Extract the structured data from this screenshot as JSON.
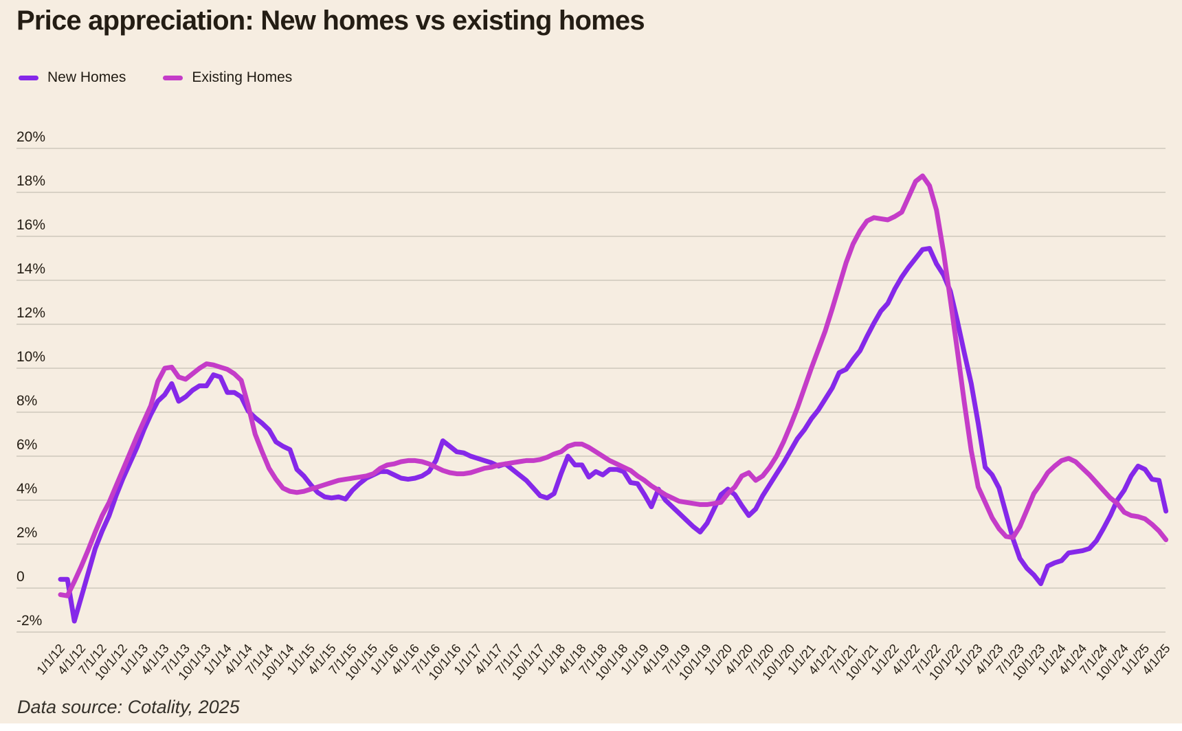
{
  "page": {
    "footer": "Data source: Cotality, 2025"
  },
  "legend": [
    {
      "label": "New Homes",
      "color": "#8528e9"
    },
    {
      "label": "Existing Homes",
      "color": "#c43cc8"
    }
  ],
  "colors": {
    "background": "#f6ede1",
    "gridline": "#d8d1c5",
    "text": "#241d14",
    "new_homes": "#8528e9",
    "existing_homes": "#c43cc8"
  },
  "chart_data": {
    "type": "line",
    "title": "Price appreciation: New homes vs existing homes",
    "xlabel": "",
    "ylabel": "",
    "ylim": [
      -2,
      20
    ],
    "grid": "horizontal",
    "legend_position": "top-left",
    "x_start_date": "1/1/12",
    "x_end_date": "4/1/25",
    "months_per_tick": 3,
    "x_tick_labels": [
      "1/1/12",
      "4/1/12",
      "7/1/12",
      "10/1/12",
      "1/1/13",
      "4/1/13",
      "7/1/13",
      "10/1/13",
      "1/1/14",
      "4/1/14",
      "7/1/14",
      "10/1/14",
      "1/1/15",
      "4/1/15",
      "7/1/15",
      "10/1/15",
      "1/1/16",
      "4/1/16",
      "7/1/16",
      "10/1/16",
      "1/1/17",
      "4/1/17",
      "7/1/17",
      "10/1/17",
      "1/1/18",
      "4/1/18",
      "7/1/18",
      "10/1/18",
      "1/1/19",
      "4/1/19",
      "7/1/19",
      "10/1/19",
      "1/1/20",
      "4/1/20",
      "7/1/20",
      "10/1/20",
      "1/1/21",
      "4/1/21",
      "7/1/21",
      "10/1/21",
      "1/1/22",
      "4/1/22",
      "7/1/22",
      "10/1/22",
      "1/1/23",
      "4/1/23",
      "7/1/23",
      "10/1/23",
      "1/1/24",
      "4/1/24",
      "7/1/24",
      "10/1/24",
      "1/1/25",
      "4/1/25"
    ],
    "y_ticks": [
      {
        "label": "20%",
        "value": 20
      },
      {
        "label": "18%",
        "value": 18
      },
      {
        "label": "16%",
        "value": 16
      },
      {
        "label": "14%",
        "value": 14
      },
      {
        "label": "12%",
        "value": 12
      },
      {
        "label": "10%",
        "value": 10
      },
      {
        "label": "8%",
        "value": 8
      },
      {
        "label": "6%",
        "value": 6
      },
      {
        "label": "4%",
        "value": 4
      },
      {
        "label": "2%",
        "value": 2
      },
      {
        "label": "0",
        "value": 0
      },
      {
        "label": "-2%",
        "value": -2
      }
    ],
    "series": [
      {
        "name": "New Homes",
        "color": "#8528e9",
        "values": [
          0.4,
          0.4,
          -1.5,
          -0.4,
          0.7,
          1.8,
          2.6,
          3.3,
          4.2,
          5.0,
          5.7,
          6.4,
          7.2,
          7.9,
          8.5,
          8.8,
          9.3,
          8.5,
          8.7,
          9.0,
          9.2,
          9.2,
          9.7,
          9.6,
          8.9,
          8.9,
          8.7,
          8.05,
          7.75,
          7.5,
          7.2,
          6.65,
          6.45,
          6.3,
          5.4,
          5.1,
          4.7,
          4.35,
          4.15,
          4.1,
          4.15,
          4.05,
          4.45,
          4.75,
          5.0,
          5.15,
          5.3,
          5.3,
          5.15,
          5.0,
          4.95,
          5.0,
          5.1,
          5.3,
          5.8,
          6.7,
          6.45,
          6.2,
          6.15,
          6.0,
          5.9,
          5.8,
          5.7,
          5.55,
          5.65,
          5.4,
          5.15,
          4.9,
          4.55,
          4.2,
          4.1,
          4.3,
          5.2,
          6.0,
          5.6,
          5.6,
          5.05,
          5.3,
          5.15,
          5.4,
          5.4,
          5.3,
          4.8,
          4.75,
          4.25,
          3.7,
          4.5,
          4.0,
          3.7,
          3.4,
          3.1,
          2.8,
          2.55,
          2.95,
          3.6,
          4.25,
          4.5,
          4.25,
          3.75,
          3.3,
          3.6,
          4.2,
          4.7,
          5.2,
          5.7,
          6.25,
          6.8,
          7.2,
          7.7,
          8.1,
          8.6,
          9.1,
          9.8,
          9.95,
          10.4,
          10.8,
          11.45,
          12.05,
          12.6,
          12.95,
          13.6,
          14.15,
          14.6,
          15.0,
          15.4,
          15.45,
          14.75,
          14.25,
          13.5,
          12.15,
          10.7,
          9.3,
          7.5,
          5.5,
          5.15,
          4.55,
          3.4,
          2.25,
          1.35,
          0.9,
          0.6,
          0.2,
          1.0,
          1.15,
          1.25,
          1.6,
          1.65,
          1.7,
          1.8,
          2.15,
          2.7,
          3.3,
          4.0,
          4.45,
          5.1,
          5.55,
          5.4,
          4.95,
          4.9,
          3.5
        ]
      },
      {
        "name": "Existing Homes",
        "color": "#c43cc8",
        "values": [
          -0.3,
          -0.35,
          0.3,
          1.0,
          1.75,
          2.55,
          3.3,
          3.9,
          4.65,
          5.4,
          6.15,
          6.9,
          7.6,
          8.3,
          9.4,
          10.0,
          10.05,
          9.6,
          9.5,
          9.75,
          10.0,
          10.2,
          10.15,
          10.05,
          9.95,
          9.75,
          9.45,
          8.3,
          7.0,
          6.2,
          5.45,
          4.95,
          4.55,
          4.4,
          4.35,
          4.4,
          4.5,
          4.6,
          4.7,
          4.8,
          4.9,
          4.95,
          5.0,
          5.05,
          5.1,
          5.2,
          5.45,
          5.6,
          5.65,
          5.75,
          5.8,
          5.8,
          5.75,
          5.65,
          5.5,
          5.35,
          5.25,
          5.2,
          5.2,
          5.25,
          5.35,
          5.45,
          5.5,
          5.6,
          5.65,
          5.7,
          5.75,
          5.8,
          5.8,
          5.85,
          5.95,
          6.1,
          6.2,
          6.45,
          6.55,
          6.55,
          6.4,
          6.2,
          6.0,
          5.8,
          5.65,
          5.5,
          5.35,
          5.1,
          4.9,
          4.65,
          4.45,
          4.25,
          4.1,
          3.95,
          3.9,
          3.85,
          3.8,
          3.8,
          3.85,
          3.9,
          4.3,
          4.6,
          5.1,
          5.25,
          4.9,
          5.1,
          5.5,
          6.0,
          6.65,
          7.4,
          8.2,
          9.1,
          10.0,
          10.85,
          11.7,
          12.7,
          13.75,
          14.8,
          15.65,
          16.25,
          16.7,
          16.85,
          16.8,
          16.75,
          16.9,
          17.1,
          17.8,
          18.5,
          18.75,
          18.3,
          17.2,
          15.3,
          13.1,
          10.8,
          8.45,
          6.25,
          4.6,
          3.9,
          3.2,
          2.7,
          2.35,
          2.3,
          2.8,
          3.55,
          4.3,
          4.75,
          5.25,
          5.55,
          5.8,
          5.9,
          5.75,
          5.45,
          5.15,
          4.8,
          4.45,
          4.1,
          3.85,
          3.45,
          3.3,
          3.25,
          3.15,
          2.9,
          2.6,
          2.2
        ]
      }
    ]
  }
}
